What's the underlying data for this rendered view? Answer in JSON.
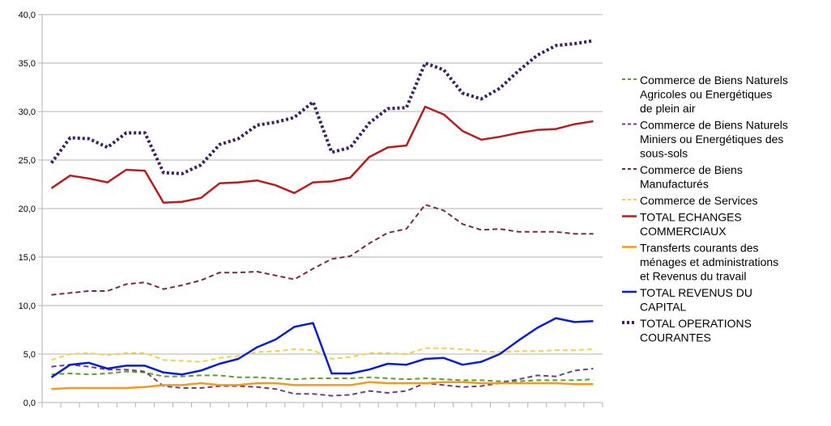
{
  "chart_data": {
    "type": "line",
    "title": "",
    "xlabel": "",
    "ylabel": "",
    "ylim": [
      0,
      40
    ],
    "yticks": [
      "0,0",
      "5,0",
      "10,0",
      "15,0",
      "20,0",
      "25,0",
      "30,0",
      "35,0",
      "40,0"
    ],
    "n_points": 30,
    "grid": "horizontal",
    "legend_position": "right",
    "series": [
      {
        "name": "Commerce de Biens Naturels Agricoles ou Energétiques de plein air",
        "legend_lines": [
          "Commerce de Biens Naturels",
          "Agricoles ou Energétiques",
          "de plein air"
        ],
        "color": "#5d9e2e",
        "style": "dashed",
        "values": [
          2.9,
          3.0,
          2.9,
          3.0,
          3.2,
          3.1,
          2.7,
          2.7,
          2.8,
          2.8,
          2.6,
          2.6,
          2.5,
          2.4,
          2.5,
          2.5,
          2.5,
          2.6,
          2.5,
          2.4,
          2.5,
          2.4,
          2.3,
          2.3,
          2.2,
          2.2,
          2.3,
          2.3,
          2.3,
          2.4
        ]
      },
      {
        "name": "Commerce de Biens Naturels Miniers ou Energétiques des sous-sols",
        "legend_lines": [
          "Commerce de Biens Naturels",
          "Miniers ou Energétiques des",
          "sous-sols"
        ],
        "color": "#6b3f87",
        "style": "dashed",
        "values": [
          3.7,
          3.9,
          3.7,
          3.4,
          3.4,
          3.2,
          1.7,
          1.5,
          1.5,
          1.7,
          1.7,
          1.6,
          1.4,
          0.9,
          0.9,
          0.7,
          0.8,
          1.2,
          1.0,
          1.2,
          2.0,
          1.8,
          1.6,
          1.7,
          2.0,
          2.4,
          2.8,
          2.7,
          3.3,
          3.5
        ]
      },
      {
        "name": "Commerce de Biens Manufacturés",
        "legend_lines": [
          "Commerce de Biens",
          "Manufacturés"
        ],
        "color": "#7a2a3a",
        "style": "dashed",
        "values": [
          11.1,
          11.3,
          11.5,
          11.5,
          12.2,
          12.4,
          11.7,
          12.1,
          12.6,
          13.4,
          13.4,
          13.5,
          13.1,
          12.7,
          13.8,
          14.8,
          15.1,
          16.4,
          17.5,
          17.9,
          20.4,
          19.8,
          18.4,
          17.8,
          17.9,
          17.6,
          17.6,
          17.6,
          17.4,
          17.4
        ]
      },
      {
        "name": "Commerce de Services",
        "legend_lines": [
          "Commerce de Services"
        ],
        "color": "#f2d04c",
        "style": "dashed",
        "values": [
          4.4,
          5.0,
          5.1,
          4.9,
          5.1,
          5.1,
          4.4,
          4.3,
          4.2,
          4.6,
          4.8,
          5.2,
          5.3,
          5.5,
          5.4,
          4.5,
          4.7,
          5.1,
          5.1,
          5.0,
          5.6,
          5.6,
          5.5,
          5.3,
          5.2,
          5.3,
          5.3,
          5.4,
          5.4,
          5.5
        ]
      },
      {
        "name": "TOTAL ECHANGES COMMERCIAUX",
        "legend_lines": [
          "TOTAL ECHANGES",
          "COMMERCIAUX"
        ],
        "color": "#b81c1c",
        "style": "solid",
        "values": [
          22.1,
          23.4,
          23.1,
          22.7,
          24.0,
          23.9,
          20.6,
          20.7,
          21.1,
          22.6,
          22.7,
          22.9,
          22.4,
          21.6,
          22.7,
          22.8,
          23.2,
          25.3,
          26.3,
          26.5,
          30.5,
          29.7,
          28.0,
          27.1,
          27.4,
          27.8,
          28.1,
          28.2,
          28.7,
          29.0
        ]
      },
      {
        "name": "Transferts courants des ménages et administrations et Revenus du travail",
        "legend_lines": [
          "Transferts courants des",
          "ménages et administrations",
          "et Revenus du travail"
        ],
        "color": "#f39a1e",
        "style": "solid",
        "values": [
          1.4,
          1.5,
          1.5,
          1.5,
          1.5,
          1.6,
          1.8,
          1.8,
          2.0,
          1.8,
          1.8,
          2.0,
          2.0,
          1.8,
          1.8,
          1.8,
          1.8,
          2.1,
          2.0,
          2.0,
          2.0,
          2.1,
          2.1,
          2.0,
          2.0,
          2.0,
          2.0,
          2.0,
          1.9,
          1.9
        ]
      },
      {
        "name": "TOTAL REVENUS DU CAPITAL",
        "legend_lines": [
          "TOTAL REVENUS DU",
          "CAPITAL"
        ],
        "color": "#0a1cd0",
        "style": "solid",
        "values": [
          2.6,
          3.9,
          4.1,
          3.5,
          3.8,
          3.8,
          3.1,
          2.9,
          3.3,
          4.0,
          4.5,
          5.7,
          6.5,
          7.8,
          8.2,
          3.0,
          3.0,
          3.4,
          4.0,
          3.9,
          4.5,
          4.6,
          3.9,
          4.2,
          5.0,
          6.4,
          7.7,
          8.7,
          8.3,
          8.4
        ]
      },
      {
        "name": "TOTAL OPERATIONS COURANTES",
        "legend_lines": [
          "TOTAL OPERATIONS",
          "COURANTES"
        ],
        "color": "#3a1f66",
        "style": "dotted",
        "values": [
          24.7,
          27.3,
          27.2,
          26.3,
          27.8,
          27.8,
          23.7,
          23.6,
          24.5,
          26.6,
          27.2,
          28.6,
          28.9,
          29.4,
          31.0,
          25.8,
          26.3,
          28.8,
          30.3,
          30.4,
          35.0,
          34.3,
          31.9,
          31.3,
          32.4,
          34.2,
          35.8,
          36.8,
          37.0,
          37.3
        ]
      }
    ]
  }
}
